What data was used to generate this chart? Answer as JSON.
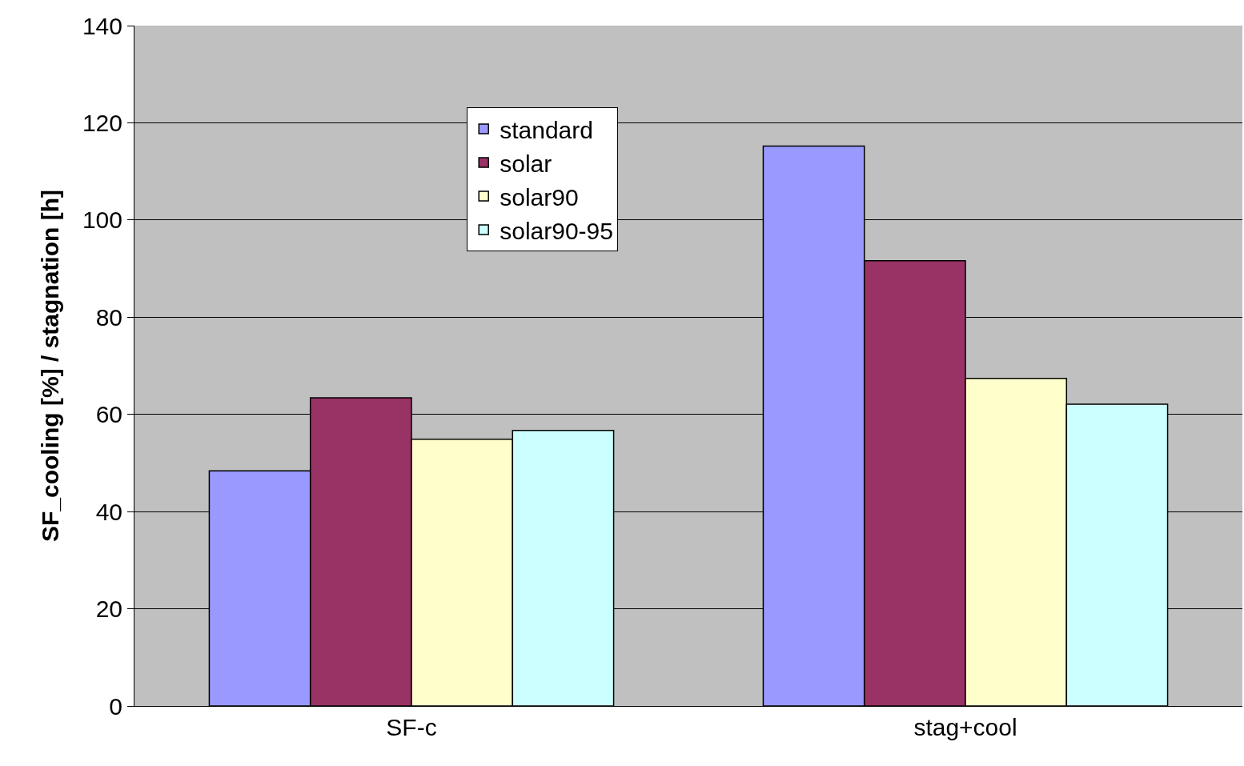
{
  "chart_data": {
    "type": "bar",
    "ylabel": "SF_cooling [%] / stagnation [h]",
    "categories": [
      "SF-c",
      "stag+cool"
    ],
    "series": [
      {
        "name": "standard",
        "color": "#9999ff",
        "values": [
          48.4,
          115.2
        ]
      },
      {
        "name": "solar",
        "color": "#993366",
        "values": [
          63.4,
          91.6
        ]
      },
      {
        "name": "solar90",
        "color": "#ffffcc",
        "values": [
          54.9,
          67.4
        ]
      },
      {
        "name": "solar90-95",
        "color": "#ccffff",
        "values": [
          56.7,
          62.1
        ]
      }
    ],
    "ylim": [
      0,
      140
    ],
    "yticks": [
      0,
      20,
      40,
      60,
      80,
      100,
      120,
      140
    ],
    "grid": "y",
    "legend": "top"
  }
}
